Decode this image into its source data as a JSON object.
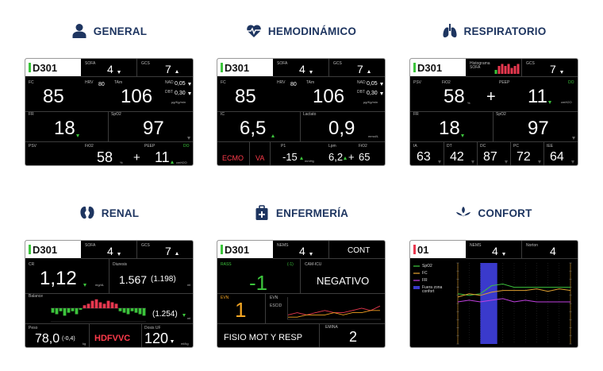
{
  "panels": [
    {
      "title": "GENERAL",
      "screen": {
        "bed": "D301",
        "sofa_label": "SOFA",
        "sofa": "4",
        "gcs_label": "GCS",
        "gcs": "7",
        "fc_label": "FC",
        "fc": "85",
        "hrv_label": "HRV",
        "hrv": "80",
        "tam_label": "TAm",
        "tam": "106",
        "nad_label": "NAD",
        "nad": "0,05",
        "dbt_label": "DBT",
        "dbt": "0,30",
        "dose_unit": "µg/Kg/min",
        "fr_label": "FR",
        "fr": "18",
        "spo2_label": "SpO2",
        "spo2": "97",
        "psv_label": "PSV",
        "fio2_label": "FiO2",
        "fio2": "58",
        "pct": "%",
        "plus": "+",
        "peep_label": "PEEP",
        "peep": "11",
        "do_label": "DO",
        "peep_unit": "cmH2O"
      }
    },
    {
      "title": "HEMODINÁMICO",
      "screen": {
        "bed": "D301",
        "sofa_label": "SOFA",
        "sofa": "4",
        "gcs_label": "GCS",
        "gcs": "7",
        "fc_label": "FC",
        "fc": "85",
        "hrv_label": "HRV",
        "hrv": "80",
        "tam_label": "TAm",
        "tam": "106",
        "nad_label": "NAD",
        "nad": "0,05",
        "dbt_label": "DBT",
        "dbt": "0,30",
        "dose_unit": "µg/Kg/min",
        "ic_label": "IC",
        "ic": "6,5",
        "lact_label": "Lactato",
        "lact": "0,9",
        "lact_unit": "mmol/L",
        "ecmo": "ECMO",
        "va": "VA",
        "p1_label": "P1",
        "p1": "-15",
        "p1_unit": "mmHg",
        "lpm_label": "Lpm",
        "lpm": "6,2",
        "plus": "+",
        "fio2_label": "FiO2",
        "fio2": "65"
      }
    },
    {
      "title": "RESPIRATORIO",
      "screen": {
        "bed": "D301",
        "hist_label": "Histograma SOFA",
        "histogram": {
          "values": [
            2,
            4,
            5,
            4,
            5,
            3,
            4,
            5
          ],
          "colors": [
            "#3cc43c",
            "#e8384f",
            "#e8384f",
            "#e8384f",
            "#e8384f",
            "#e8384f",
            "#e8384f",
            "#e8384f"
          ],
          "ylim": [
            0,
            6
          ]
        },
        "gcs_label": "GCS",
        "gcs": "7",
        "psv_label": "PSV",
        "fio2_label": "FiO2",
        "fio2": "58",
        "pct": "%",
        "plus": "+",
        "peep_label": "PEEP",
        "peep": "11",
        "do_label": "DO",
        "peep_unit": "cmH2O",
        "fr_label": "FR",
        "fr": "18",
        "spo2_label": "SpO2",
        "spo2": "97",
        "ia_label": "IA",
        "ia": "63",
        "dt_label": "DT",
        "dt": "42",
        "dc_label": "DC",
        "dc": "87",
        "pc_label": "PC",
        "pc": "72",
        "iee_label": "IEE",
        "iee": "64"
      }
    },
    {
      "title": "RENAL",
      "screen": {
        "bed": "D301",
        "sofa_label": "SOFA",
        "sofa": "4",
        "gcs_label": "GCS",
        "gcs": "7",
        "cr_label": "CR",
        "cr": "1,12",
        "cr_unit": "mg/dL",
        "diuresis_label": "Diuresis",
        "diuresis": "1.567",
        "diuresis_prev": "(1.198)",
        "diuresis_unit": "ml",
        "balance_label": "Balance",
        "balance": {
          "values": [
            -3,
            -4,
            -2,
            -5,
            -3,
            -2,
            -4,
            -1,
            2,
            3,
            5,
            6,
            4,
            3,
            5,
            4,
            3,
            -2,
            -3,
            -4,
            -2,
            -3,
            -4,
            -5
          ],
          "ylim": [
            -8,
            8
          ],
          "pos_color": "#e8384f",
          "neg_color": "#3cc43c"
        },
        "balance_total": "(1.254)",
        "balance_unit": "ml",
        "peso_label": "Peso",
        "peso": "78,0",
        "peso_delta": "(-0,4)",
        "peso_unit": "kg",
        "therapy": "HDFVVC",
        "dosis_label": "Dosis UF",
        "dosis": "120",
        "dosis_unit": "ml/kg"
      }
    },
    {
      "title": "ENFERMERÍA",
      "screen": {
        "bed": "D301",
        "nems_label": "NEMS",
        "nems": "4",
        "cont": "CONT",
        "rass_label": "RASS",
        "rass_ref": "(-1)",
        "rass": "-1",
        "cam_label": "CAM-ICU",
        "cam": "NEGATIVO",
        "evn_label": "EVN",
        "evn": "1",
        "trend": {
          "series": [
            {
              "name": "EVN",
              "color": "#e8384f",
              "values": [
                2,
                3,
                2,
                3,
                4,
                3,
                3,
                4,
                5,
                4,
                6
              ]
            },
            {
              "name": "ESCID",
              "color": "#f0a020",
              "values": [
                1,
                1,
                2,
                2,
                2,
                3,
                2,
                3,
                3,
                4,
                4
              ]
            }
          ],
          "ylim": [
            0,
            10
          ]
        },
        "fisio": "FISIO MOT Y RESP",
        "emina_label": "EMINA",
        "emina": "2"
      }
    },
    {
      "title": "CONFORT",
      "screen": {
        "bed": "01",
        "nems_label": "NEMS",
        "nems": "4",
        "norton_label": "Norton",
        "norton": "4",
        "chart": {
          "series": [
            {
              "name": "SpO2",
              "color": "#3cc43c",
              "values": [
                62,
                60,
                62,
                72,
                74,
                70,
                70,
                70,
                70,
                70,
                70
              ]
            },
            {
              "name": "FC",
              "color": "#e0a030",
              "values": [
                58,
                62,
                60,
                64,
                66,
                66,
                66,
                68,
                65,
                68,
                66
              ]
            },
            {
              "name": "FR",
              "color": "#c040e0",
              "values": [
                52,
                54,
                52,
                54,
                56,
                52,
                54,
                52,
                52,
                52,
                52
              ]
            }
          ],
          "ylim": [
            0,
            100
          ],
          "out_of_zone": {
            "name": "Fuera zona confort",
            "color": "#3a3acc",
            "x": [
              2,
              3.5
            ]
          }
        }
      }
    }
  ]
}
